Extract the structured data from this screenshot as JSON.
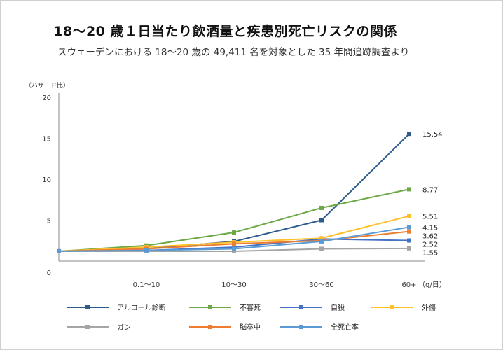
{
  "header": {
    "title": "18〜20 歳１日当たり飲酒量と疾患別死亡リスクの関係",
    "subtitle": "スウェーデンにおける 18〜20 歳の 49,411 名を対象とした 35 年間追跡調査より"
  },
  "chart_data": {
    "type": "line",
    "ylabel": "（ハザード比）",
    "x_unit": "（g/日）",
    "categories": [
      "0",
      "0.1〜10",
      "10〜30",
      "30〜60",
      "60+"
    ],
    "category_labels": [
      "",
      "0.1〜10",
      "10〜30",
      "30〜60",
      "60+"
    ],
    "ylim": [
      0,
      20
    ],
    "yticks": [
      "0",
      "5",
      "10",
      "15",
      "20"
    ],
    "grid": false,
    "legend_position": "bottom",
    "series": [
      {
        "name": "アルコール診断",
        "color": "#2e5b8c",
        "values": [
          1.2,
          1.5,
          2.4,
          5.0,
          15.54
        ],
        "end_label": "15.54"
      },
      {
        "name": "不審死",
        "color": "#6ca945",
        "values": [
          1.2,
          1.9,
          3.5,
          6.5,
          8.77
        ],
        "end_label": "8.77"
      },
      {
        "name": "自殺",
        "color": "#4472c4",
        "values": [
          1.2,
          1.3,
          1.7,
          2.7,
          2.52
        ],
        "end_label": "2.52"
      },
      {
        "name": "外傷",
        "color": "#ffc12a",
        "values": [
          1.2,
          1.7,
          2.3,
          2.8,
          5.51
        ],
        "end_label": "5.51"
      },
      {
        "name": "ガン",
        "color": "#a5a5a5",
        "values": [
          1.2,
          1.2,
          1.2,
          1.5,
          1.55
        ],
        "end_label": "1.55"
      },
      {
        "name": "脳卒中",
        "color": "#ed7d31",
        "values": [
          1.2,
          1.5,
          2.1,
          2.5,
          3.62
        ],
        "end_label": "3.62"
      },
      {
        "name": "全死亡率",
        "color": "#5b9bd5",
        "values": [
          1.2,
          1.3,
          1.5,
          2.4,
          4.15
        ],
        "end_label": "4.15"
      }
    ]
  }
}
